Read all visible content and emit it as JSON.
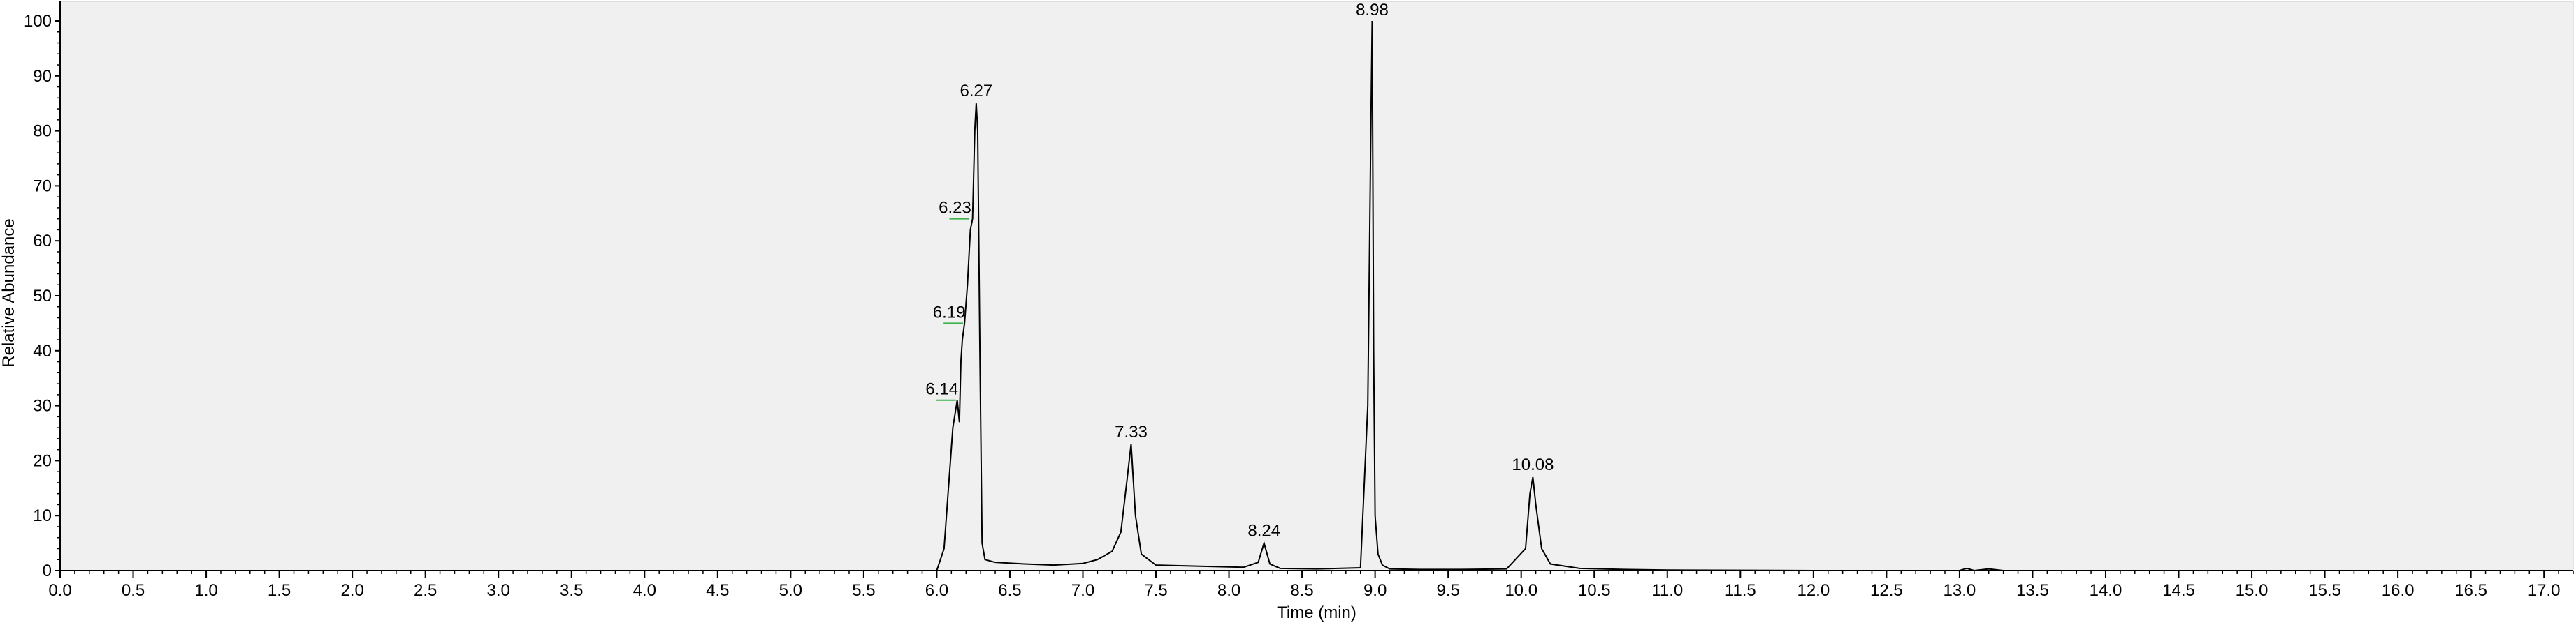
{
  "chart_data": {
    "type": "line",
    "xlabel": "Time (min)",
    "ylabel": "Relative Abundance",
    "xlim": [
      0.0,
      17.2
    ],
    "ylim": [
      0,
      100
    ],
    "x_ticks": [
      "0.0",
      "0.5",
      "1.0",
      "1.5",
      "2.0",
      "2.5",
      "3.0",
      "3.5",
      "4.0",
      "4.5",
      "5.0",
      "5.5",
      "6.0",
      "6.5",
      "7.0",
      "7.5",
      "8.0",
      "8.5",
      "9.0",
      "9.5",
      "10.0",
      "10.5",
      "11.0",
      "11.5",
      "12.0",
      "12.5",
      "13.0",
      "13.5",
      "14.0",
      "14.5",
      "15.0",
      "15.5",
      "16.0",
      "16.5",
      "17.0"
    ],
    "y_ticks": [
      "0",
      "10",
      "20",
      "30",
      "40",
      "50",
      "60",
      "70",
      "80",
      "90",
      "100"
    ],
    "grid": false,
    "colors": {
      "plot_background": "#f0f0f0",
      "trace": "#000000",
      "label_marker": "#3cb44b",
      "page_background": "#ffffff"
    },
    "series": [
      {
        "x": [
          0.0,
          5.0,
          6.0,
          6.05,
          6.08,
          6.11,
          6.14,
          6.155,
          6.165,
          6.175,
          6.19,
          6.21,
          6.23,
          6.245,
          6.26,
          6.27,
          6.28,
          6.295,
          6.31,
          6.33,
          6.4,
          6.6,
          6.8,
          7.0,
          7.1,
          7.2,
          7.26,
          7.3,
          7.33,
          7.36,
          7.4,
          7.5,
          7.8,
          8.1,
          8.2,
          8.24,
          8.28,
          8.35,
          8.6,
          8.9,
          8.95,
          8.97,
          8.98,
          8.99,
          9.0,
          9.02,
          9.05,
          9.1,
          9.3,
          9.6,
          9.9,
          10.03,
          10.06,
          10.08,
          10.1,
          10.14,
          10.2,
          10.4,
          10.7,
          11.0,
          12.0,
          13.0,
          13.05,
          13.1,
          13.2,
          13.3,
          14.0,
          17.2
        ],
        "y": [
          0,
          0,
          0,
          4,
          15,
          26,
          31,
          27,
          38,
          42,
          45,
          52,
          62,
          64,
          80,
          85,
          80,
          40,
          5,
          2,
          1.5,
          1.2,
          1.0,
          1.3,
          2.0,
          3.5,
          7,
          16,
          23,
          10,
          3,
          1,
          0.8,
          0.6,
          1.5,
          5,
          1.2,
          0.4,
          0.3,
          0.5,
          30,
          78,
          100,
          40,
          10,
          3,
          1,
          0.3,
          0.2,
          0.2,
          0.3,
          4,
          14,
          17,
          12,
          4,
          1.2,
          0.4,
          0.2,
          0.1,
          0,
          0,
          0.4,
          0,
          0.3,
          0,
          0,
          0
        ]
      }
    ],
    "annotations": [
      {
        "label": "6.27",
        "x": 6.27,
        "y": 85
      },
      {
        "label": "6.23",
        "x": 6.23,
        "y": 64
      },
      {
        "label": "6.19",
        "x": 6.19,
        "y": 45
      },
      {
        "label": "6.14",
        "x": 6.14,
        "y": 31
      },
      {
        "label": "7.33",
        "x": 7.33,
        "y": 23
      },
      {
        "label": "8.24",
        "x": 8.24,
        "y": 5
      },
      {
        "label": "8.98",
        "x": 8.98,
        "y": 100
      },
      {
        "label": "10.08",
        "x": 10.08,
        "y": 17
      }
    ]
  }
}
